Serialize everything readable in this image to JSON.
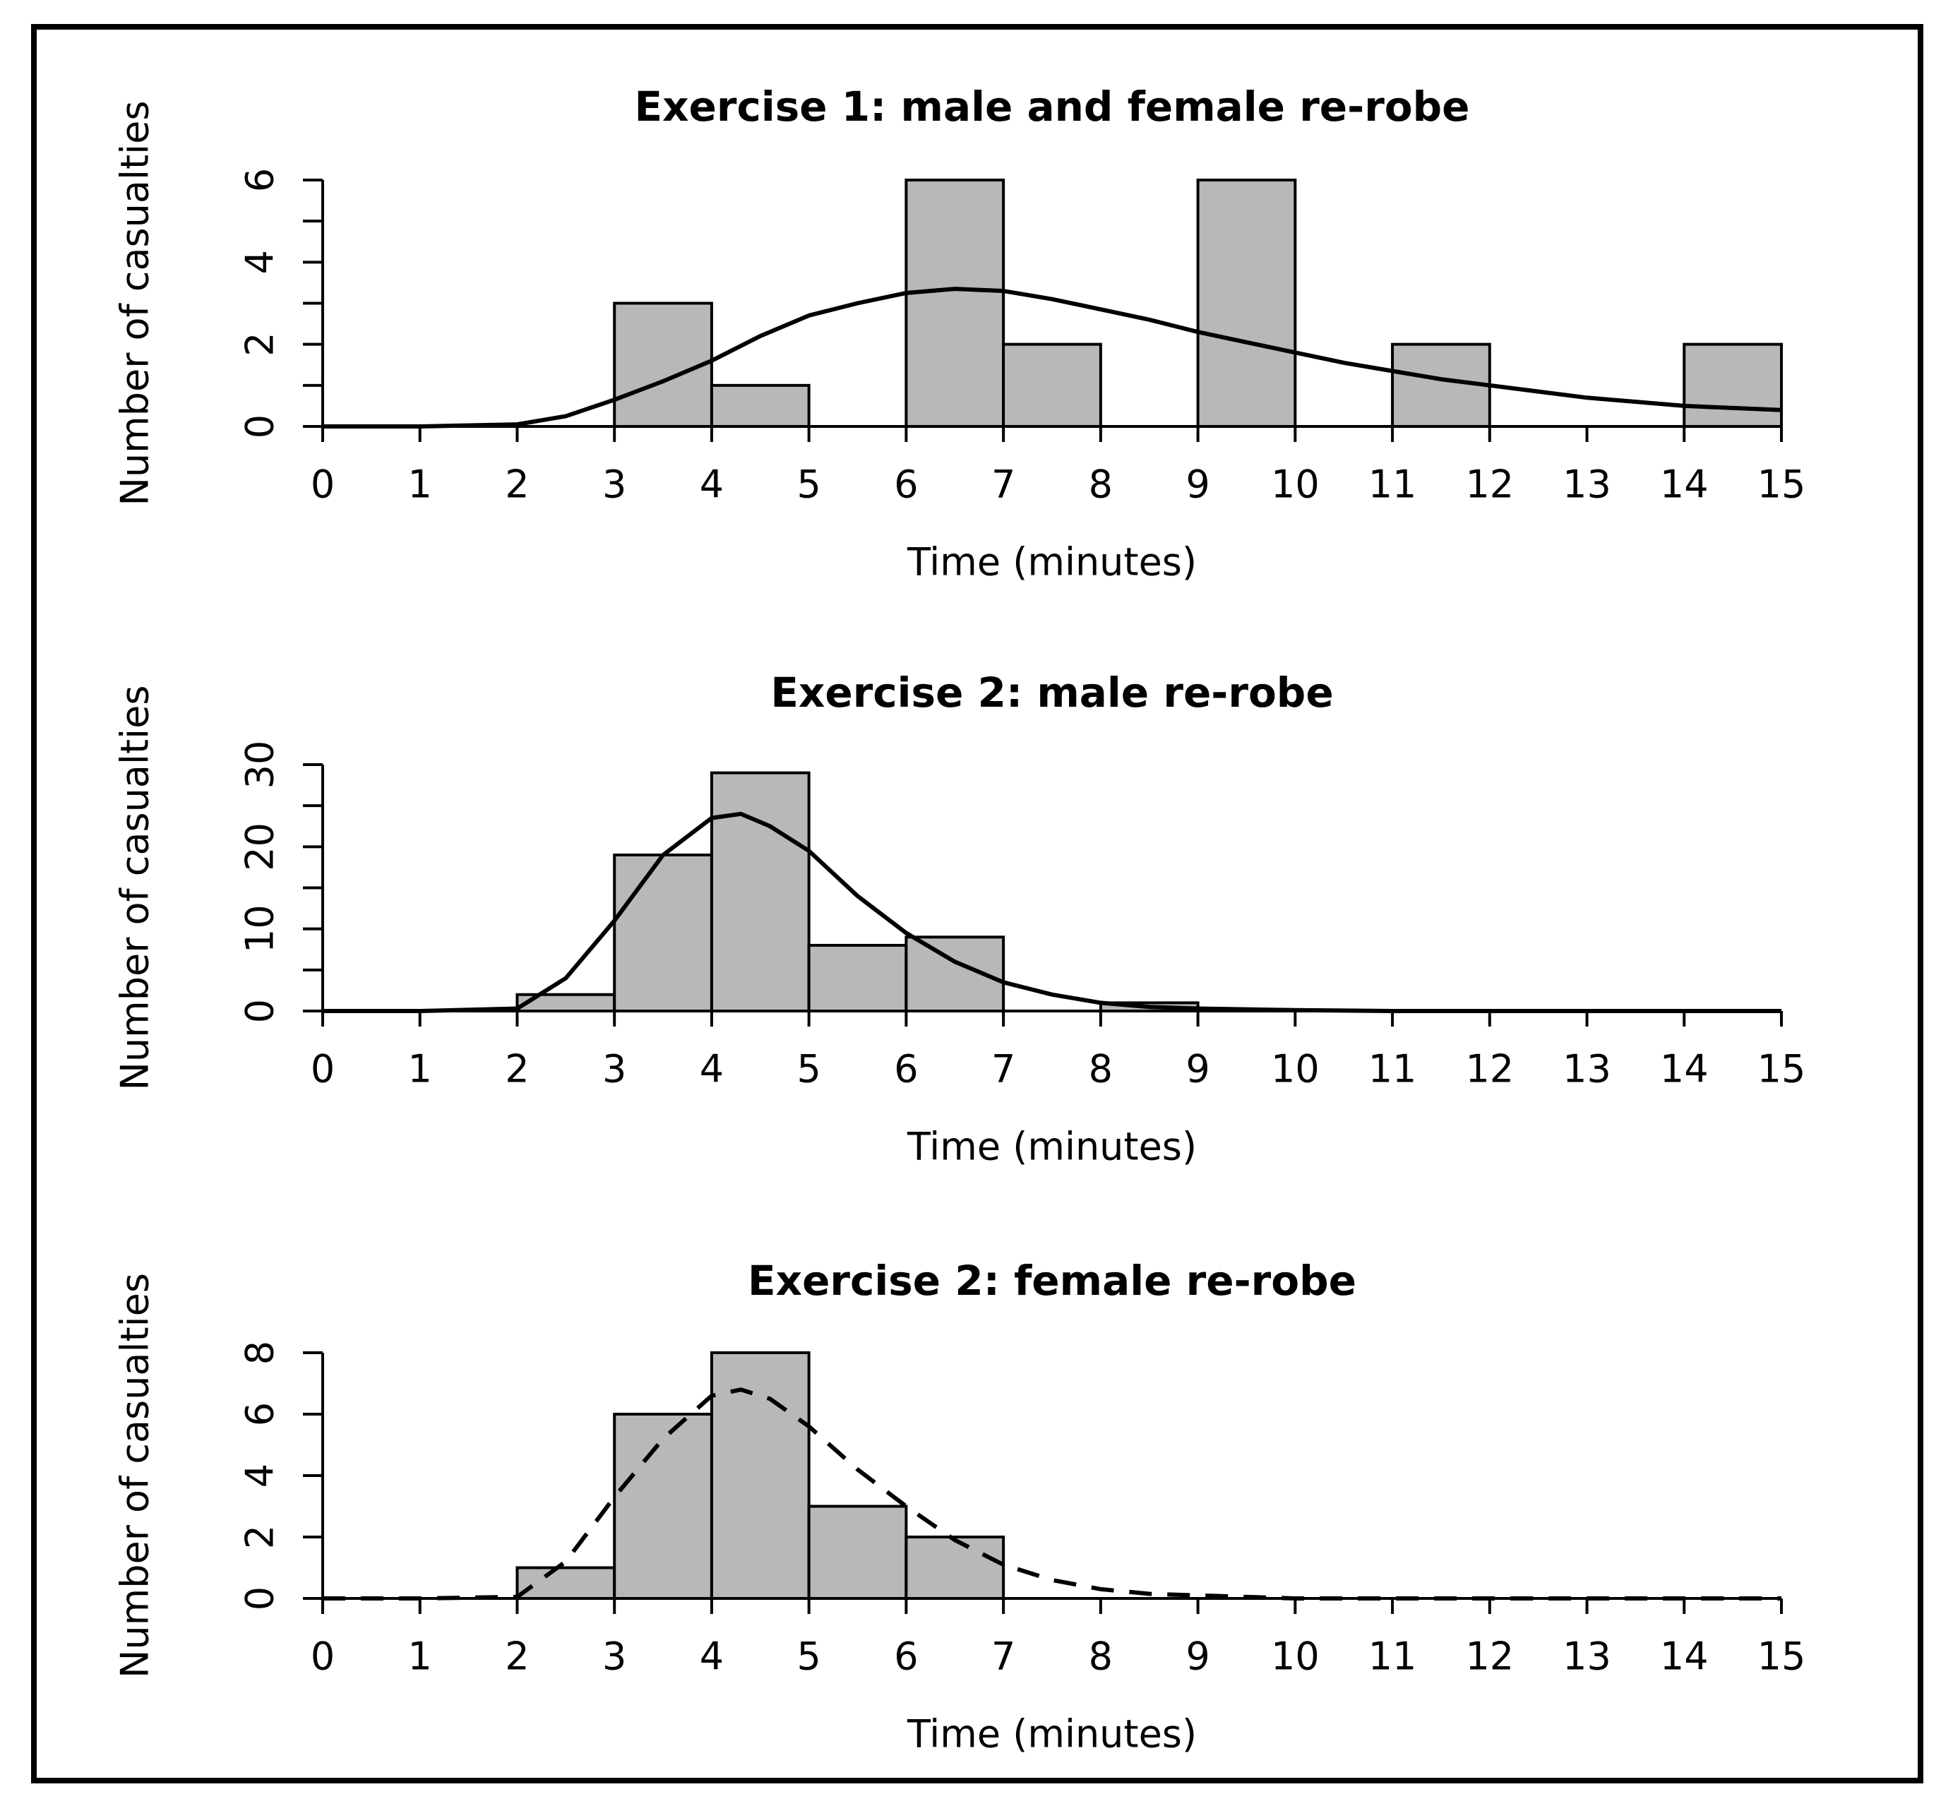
{
  "figure": {
    "background": "#ffffff",
    "bar_color": "#b8b8b8",
    "ink_color": "#000000"
  },
  "chart_data": [
    {
      "type": "bar",
      "title": "Exercise 1: male and female re-robe",
      "xlabel": "Time (minutes)",
      "ylabel": "Number of casualties",
      "xlim": [
        0,
        15
      ],
      "ylim": [
        0,
        6
      ],
      "x_ticks": [
        "0",
        "1",
        "2",
        "3",
        "4",
        "5",
        "6",
        "7",
        "8",
        "9",
        "10",
        "11",
        "12",
        "13",
        "14",
        "15"
      ],
      "y_ticks": [
        "0",
        "2",
        "4",
        "6"
      ],
      "y_tick_values": [
        0,
        2,
        4,
        6
      ],
      "y_minor_step": 1,
      "bin_edges": [
        0,
        1,
        2,
        3,
        4,
        5,
        6,
        7,
        8,
        9,
        10,
        11,
        12,
        13,
        14,
        15
      ],
      "values": [
        0,
        0,
        0,
        3,
        1,
        0,
        6,
        2,
        0,
        6,
        0,
        2,
        0,
        0,
        2
      ],
      "curve": {
        "style": "solid",
        "x": [
          0,
          1,
          2,
          2.5,
          3,
          3.5,
          4,
          4.5,
          5,
          5.5,
          6,
          6.5,
          7,
          7.5,
          8,
          8.5,
          9,
          9.5,
          10,
          10.5,
          11,
          11.5,
          12,
          13,
          14,
          15
        ],
        "y": [
          0,
          0,
          0.05,
          0.25,
          0.65,
          1.1,
          1.6,
          2.2,
          2.7,
          3.0,
          3.25,
          3.35,
          3.3,
          3.1,
          2.85,
          2.6,
          2.3,
          2.05,
          1.8,
          1.55,
          1.35,
          1.15,
          1.0,
          0.7,
          0.5,
          0.4
        ]
      }
    },
    {
      "type": "bar",
      "title": "Exercise 2: male re-robe",
      "xlabel": "Time (minutes)",
      "ylabel": "Number of casualties",
      "xlim": [
        0,
        15
      ],
      "ylim": [
        0,
        30
      ],
      "x_ticks": [
        "0",
        "1",
        "2",
        "3",
        "4",
        "5",
        "6",
        "7",
        "8",
        "9",
        "10",
        "11",
        "12",
        "13",
        "14",
        "15"
      ],
      "y_ticks": [
        "0",
        "10",
        "20",
        "30"
      ],
      "y_tick_values": [
        0,
        10,
        20,
        30
      ],
      "y_minor_step": 5,
      "bin_edges": [
        0,
        1,
        2,
        3,
        4,
        5,
        6,
        7,
        8,
        9,
        10,
        11,
        12,
        13,
        14,
        15
      ],
      "values": [
        0,
        0,
        2,
        19,
        29,
        8,
        9,
        0,
        1,
        0,
        0,
        0,
        0,
        0,
        0
      ],
      "curve": {
        "style": "solid",
        "x": [
          0,
          1,
          2,
          2.5,
          3,
          3.5,
          4,
          4.3,
          4.6,
          5,
          5.5,
          6,
          6.5,
          7,
          7.5,
          8,
          8.5,
          9,
          10,
          11,
          12,
          13,
          14,
          15
        ],
        "y": [
          0,
          0,
          0.3,
          4,
          11,
          19,
          23.5,
          24,
          22.5,
          19.5,
          14,
          9.5,
          6,
          3.5,
          2,
          1,
          0.5,
          0.3,
          0.1,
          0,
          0,
          0,
          0,
          0
        ]
      }
    },
    {
      "type": "bar",
      "title": "Exercise 2: female re-robe",
      "xlabel": "Time (minutes)",
      "ylabel": "Number of casualties",
      "xlim": [
        0,
        15
      ],
      "ylim": [
        0,
        8
      ],
      "x_ticks": [
        "0",
        "1",
        "2",
        "3",
        "4",
        "5",
        "6",
        "7",
        "8",
        "9",
        "10",
        "11",
        "12",
        "13",
        "14",
        "15"
      ],
      "y_ticks": [
        "0",
        "2",
        "4",
        "6",
        "8"
      ],
      "y_tick_values": [
        0,
        2,
        4,
        6,
        8
      ],
      "y_minor_step": 2,
      "bin_edges": [
        0,
        1,
        2,
        3,
        4,
        5,
        6,
        7,
        8,
        9,
        10,
        11,
        12,
        13,
        14,
        15
      ],
      "values": [
        0,
        0,
        1,
        6,
        8,
        3,
        2,
        0,
        0,
        0,
        0,
        0,
        0,
        0,
        0
      ],
      "curve": {
        "style": "dashed",
        "x": [
          0,
          1,
          2,
          2.5,
          3,
          3.5,
          4,
          4.3,
          4.6,
          5,
          5.5,
          6,
          6.5,
          7,
          7.5,
          8,
          8.5,
          9,
          10,
          11,
          12,
          13,
          14,
          15
        ],
        "y": [
          0,
          0,
          0.05,
          1.2,
          3.3,
          5.2,
          6.6,
          6.8,
          6.5,
          5.6,
          4.2,
          3.0,
          1.9,
          1.1,
          0.6,
          0.3,
          0.15,
          0.1,
          0,
          0,
          0,
          0,
          0,
          0
        ]
      }
    }
  ]
}
